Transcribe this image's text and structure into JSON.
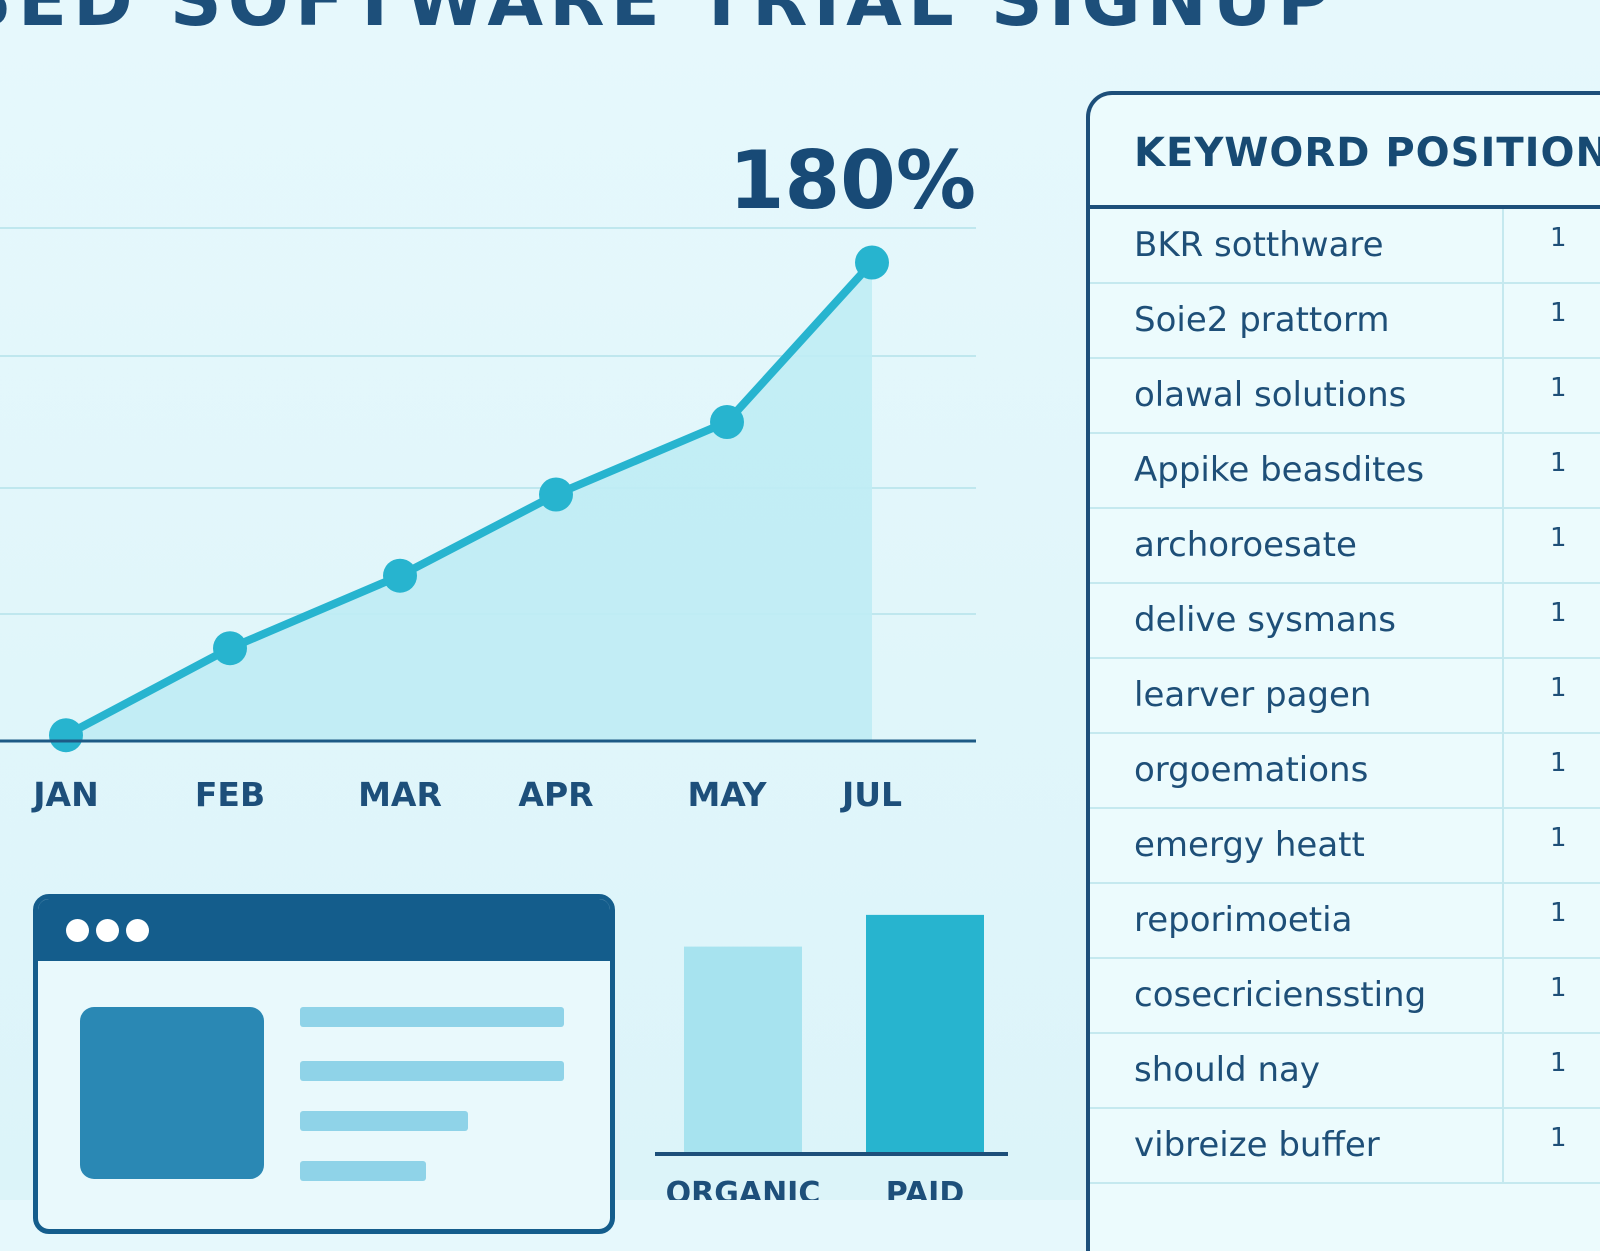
{
  "header": {
    "title": "SED SOFTWARE TRIAL SIGNUP"
  },
  "chart_data": [
    {
      "type": "area",
      "categories": [
        "JAN",
        "FEB",
        "MAR",
        "APR",
        "MAY",
        "JUL"
      ],
      "series": [
        {
          "values": [
            2,
            32,
            57,
            85,
            110,
            165
          ]
        }
      ],
      "ylim": [
        0,
        200
      ],
      "grid": true,
      "annotation": "180%",
      "colors": {
        "line": "#27b4cf",
        "fill": "#bfecf4",
        "axis": "#1d5a85",
        "grid": "#bfe7ee"
      }
    },
    {
      "type": "bar",
      "categories": [
        "ORGANIC",
        "PAID"
      ],
      "values": [
        85,
        98
      ],
      "ylim": [
        0,
        100
      ],
      "colors": [
        "#a7e3ef",
        "#27b4cf"
      ]
    }
  ],
  "keyword_panel": {
    "title": "KEYWORD POSITION",
    "rows": [
      {
        "keyword": "BKR sotthware",
        "position": "1"
      },
      {
        "keyword": "Soie2 prattorm",
        "position": "1"
      },
      {
        "keyword": "olawal solutions",
        "position": "1"
      },
      {
        "keyword": "Appike beasdites",
        "position": "1"
      },
      {
        "keyword": "archoroesate",
        "position": "1"
      },
      {
        "keyword": "delive sysmans",
        "position": "1"
      },
      {
        "keyword": "learver pagen",
        "position": "1"
      },
      {
        "keyword": "orgoemations",
        "position": "1"
      },
      {
        "keyword": "emergy heatt",
        "position": "1"
      },
      {
        "keyword": "reporimoetia",
        "position": "1"
      },
      {
        "keyword": "cosecricienssting",
        "position": "1"
      },
      {
        "keyword": "should nay",
        "position": "1"
      },
      {
        "keyword": "vibreize buffer",
        "position": "1"
      }
    ]
  },
  "browser_mockup": {
    "icons": [
      "window-dot-icon",
      "window-dot-icon",
      "window-dot-icon",
      "image-placeholder-icon"
    ],
    "colors": {
      "frame": "#145d8c",
      "image": "#2a88b4",
      "lines": "#8fd3e8"
    }
  }
}
